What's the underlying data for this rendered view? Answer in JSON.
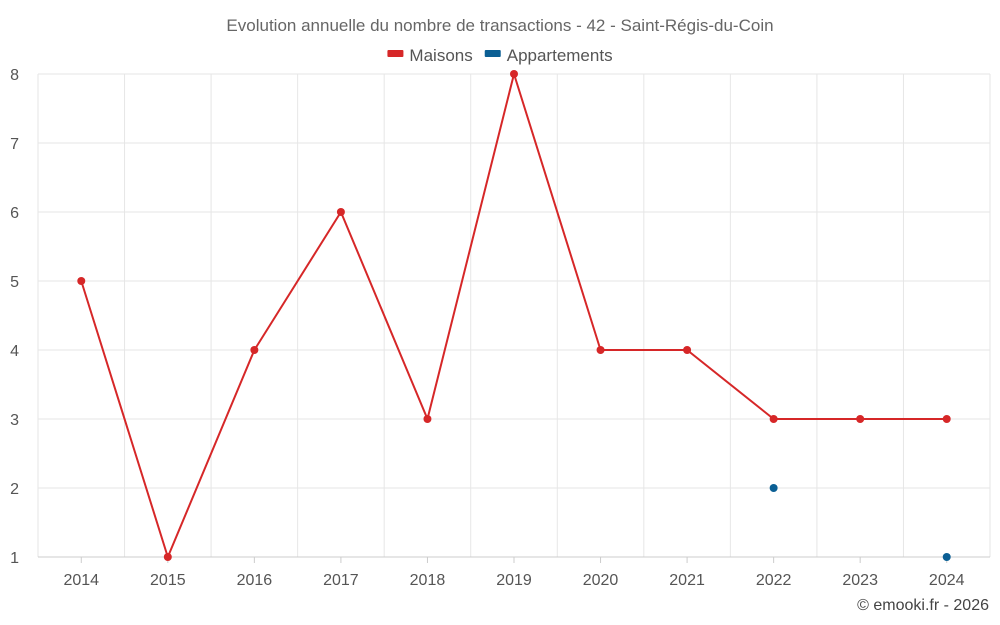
{
  "chart_data": {
    "type": "line",
    "title": "Evolution annuelle du nombre de transactions - 42 - Saint-Régis-du-Coin",
    "x": [
      "2014",
      "2015",
      "2016",
      "2017",
      "2018",
      "2019",
      "2020",
      "2021",
      "2022",
      "2023",
      "2024"
    ],
    "series": [
      {
        "name": "Maisons",
        "color": "#d62728",
        "values": [
          5,
          1,
          4,
          6,
          3,
          8,
          4,
          4,
          3,
          3,
          3
        ]
      },
      {
        "name": "Appartements",
        "color": "#0b5f94",
        "values": [
          null,
          null,
          null,
          null,
          null,
          null,
          null,
          null,
          2,
          null,
          1
        ]
      }
    ],
    "ylim": [
      1,
      8
    ],
    "yticks": [
      1,
      2,
      3,
      4,
      5,
      6,
      7,
      8
    ],
    "grid": true,
    "legend_position": "top-center"
  },
  "credit": "© emooki.fr - 2026"
}
